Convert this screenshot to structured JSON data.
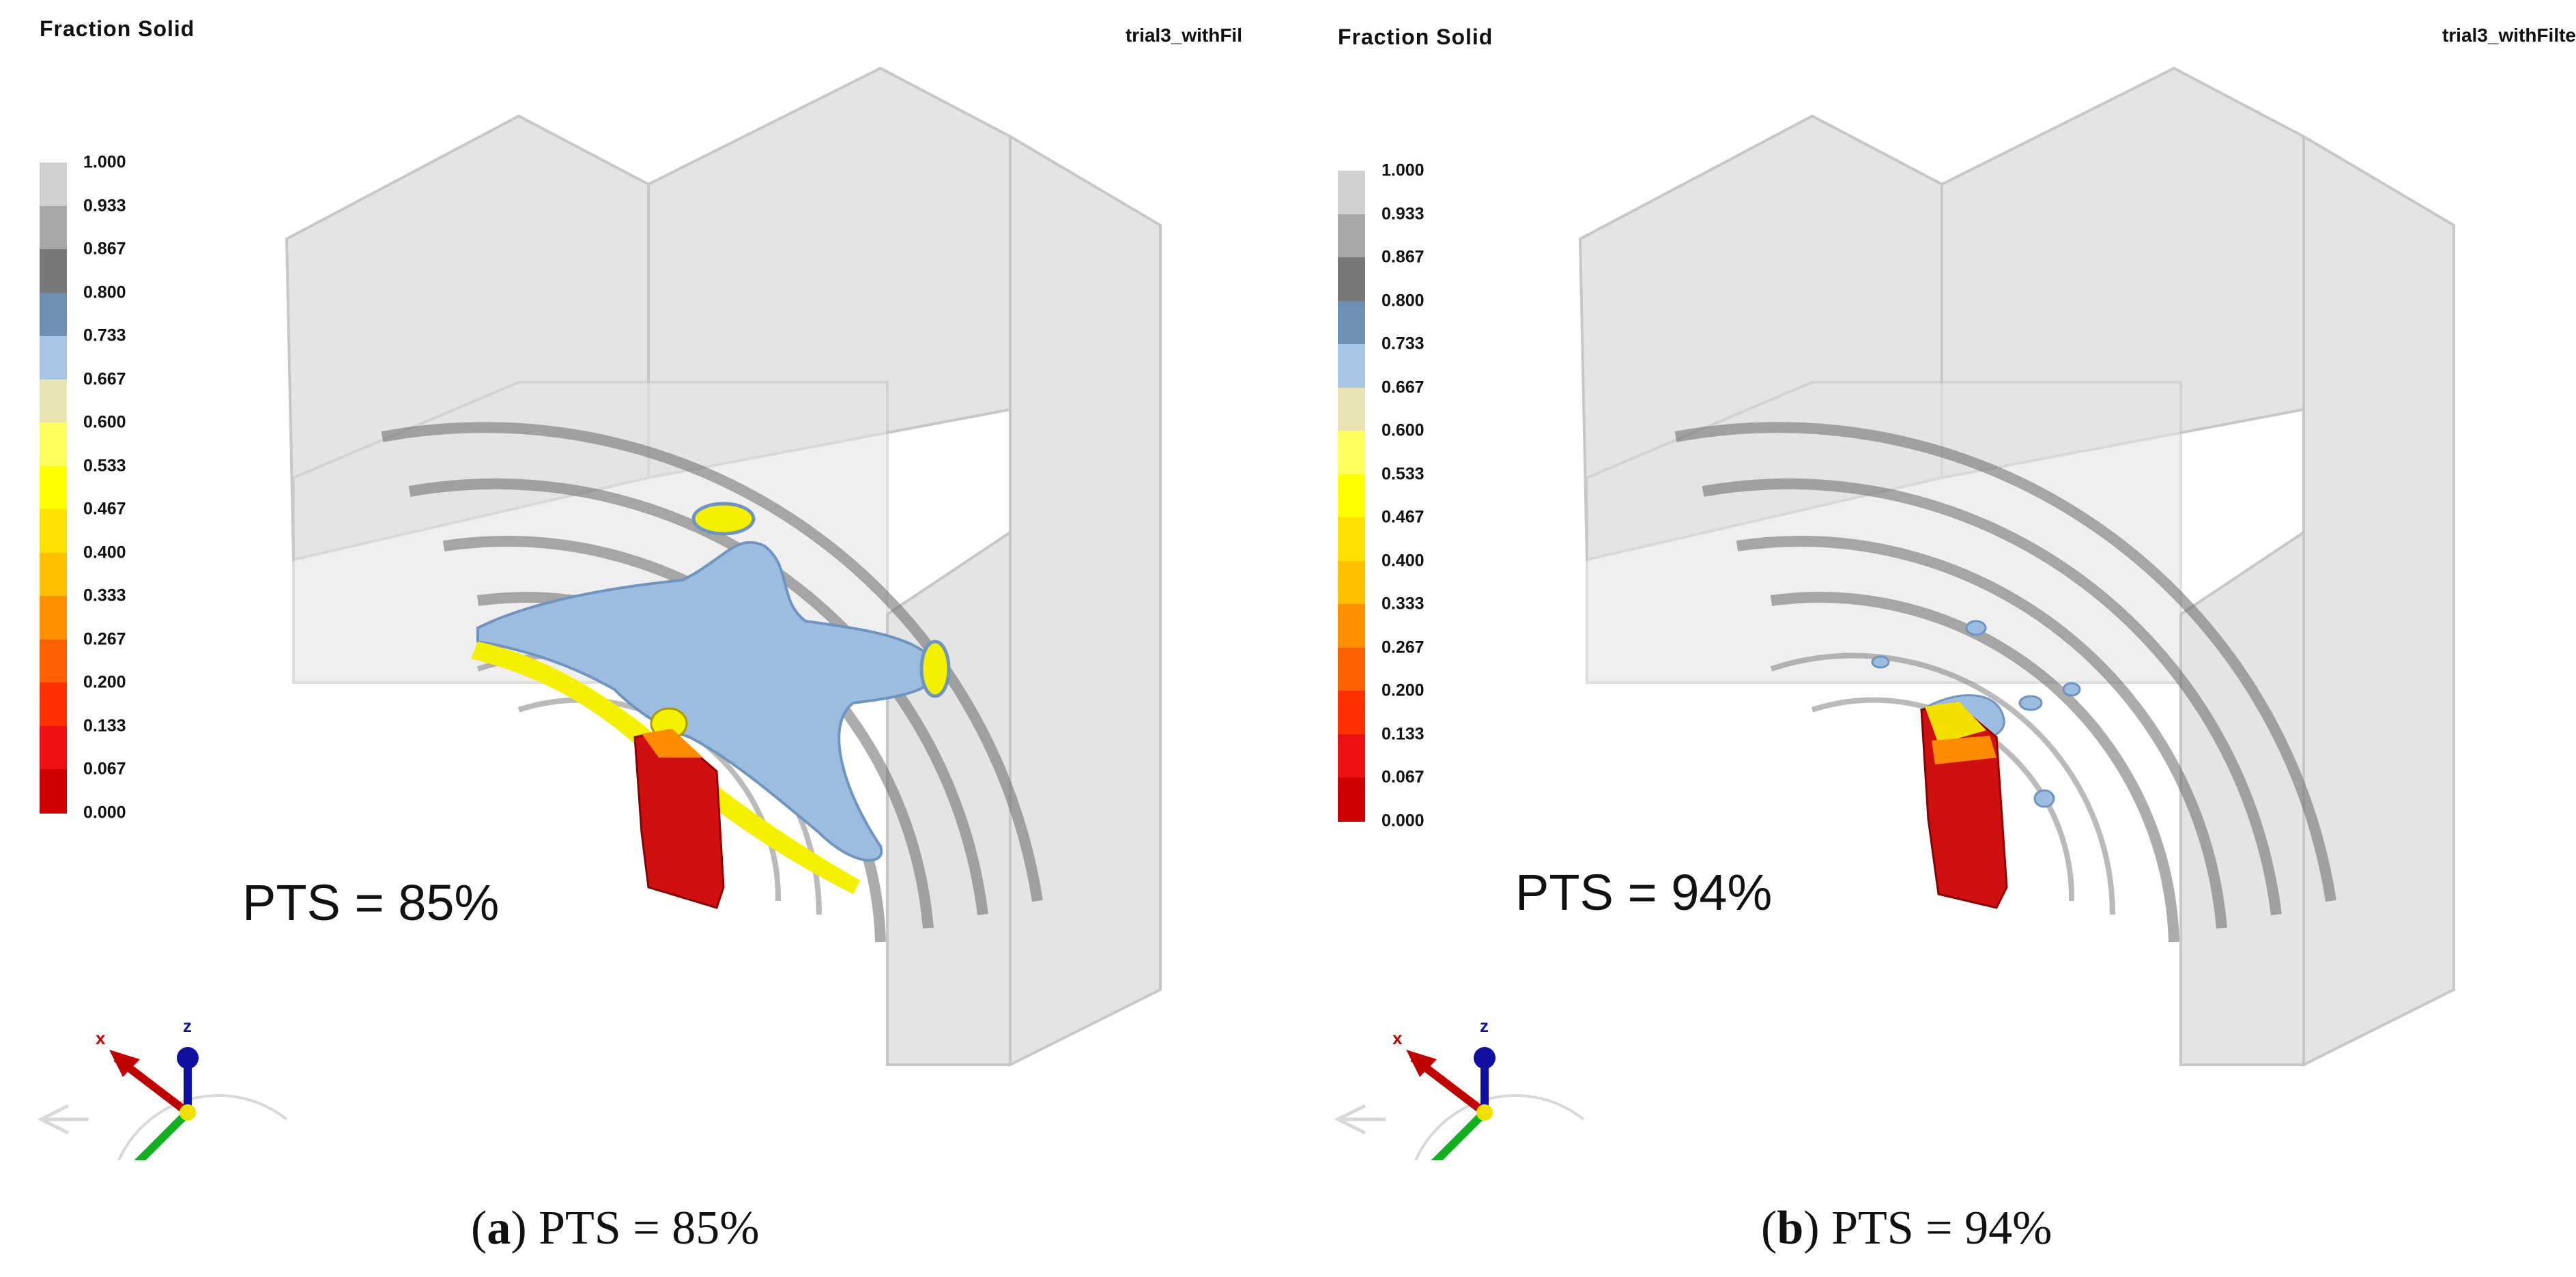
{
  "panels": [
    {
      "title": "Fraction Solid",
      "file_label": "trial3_withFil",
      "pts_label": "PTS = 85%",
      "caption_letter": "a",
      "caption_text": "PTS = 85%",
      "axis_labels": {
        "x": "x",
        "z": "z"
      }
    },
    {
      "title": "Fraction Solid",
      "file_label": "trial3_withFilte",
      "pts_label": "PTS = 94%",
      "caption_letter": "b",
      "caption_text": "PTS = 94%",
      "axis_labels": {
        "x": "x",
        "z": "z"
      }
    }
  ],
  "legend": {
    "ticks": [
      "1.000",
      "0.933",
      "0.867",
      "0.800",
      "0.733",
      "0.667",
      "0.600",
      "0.533",
      "0.467",
      "0.400",
      "0.333",
      "0.267",
      "0.200",
      "0.133",
      "0.067",
      "0.000"
    ],
    "colors": [
      "#d0d0d0",
      "#a8a8a8",
      "#787878",
      "#6d8fb3",
      "#a6c4e3",
      "#e8e3b0",
      "#ffff60",
      "#ffff00",
      "#ffe000",
      "#ffc000",
      "#ff9000",
      "#ff6000",
      "#ff3000",
      "#ee1010",
      "#d00000"
    ]
  },
  "colors": {
    "mold_gray": "#8a8a8a",
    "solid_blue": "#9dbde0",
    "liquid_yellow": "#f4f000",
    "riser_red": "#d01010"
  }
}
